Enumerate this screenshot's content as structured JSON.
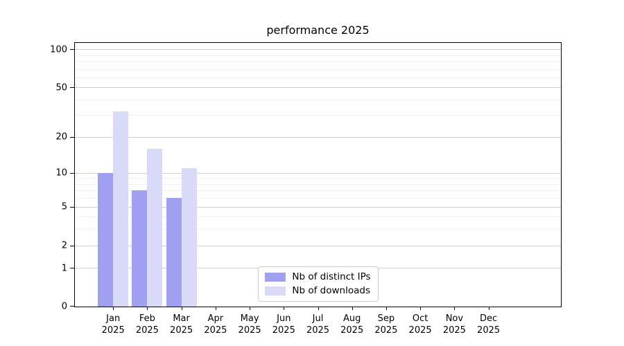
{
  "title": "performance 2025",
  "colors": {
    "ips_bar": "#a0a0f0",
    "downloads_bar": "#d9d9f8",
    "grid_major": "#cfcfcf",
    "grid_minor": "#eeeeee",
    "spine": "#000000",
    "legend_border": "#cccccc",
    "text": "#000000",
    "background": "#ffffff"
  },
  "legend": {
    "items": [
      {
        "label": "Nb of distinct IPs",
        "color_key": "ips_bar"
      },
      {
        "label": "Nb of downloads",
        "color_key": "downloads_bar"
      }
    ]
  },
  "chart_data": {
    "type": "bar",
    "title": "performance 2025",
    "categories": [
      "Jan 2025",
      "Feb 2025",
      "Mar 2025",
      "Apr 2025",
      "May 2025",
      "Jun 2025",
      "Jul 2025",
      "Aug 2025",
      "Sep 2025",
      "Oct 2025",
      "Nov 2025",
      "Dec 2025"
    ],
    "series": [
      {
        "name": "Nb of distinct IPs",
        "color": "#a0a0f0",
        "values": [
          10,
          7,
          6,
          0,
          0,
          0,
          0,
          0,
          0,
          0,
          0,
          0
        ]
      },
      {
        "name": "Nb of downloads",
        "color": "#d9d9f8",
        "values": [
          32,
          16,
          11,
          0,
          0,
          0,
          0,
          0,
          0,
          0,
          0,
          0
        ]
      }
    ],
    "xlabel": "",
    "ylabel": "",
    "yscale": "log1p",
    "y_major_ticks": [
      0,
      1,
      2,
      5,
      10,
      20,
      50,
      100
    ],
    "y_minor_gridlines": [
      3,
      4,
      6,
      7,
      8,
      9,
      30,
      40,
      60,
      70,
      80,
      90
    ],
    "ylim": [
      0,
      112
    ],
    "grid": true,
    "legend_position": "lower center"
  }
}
